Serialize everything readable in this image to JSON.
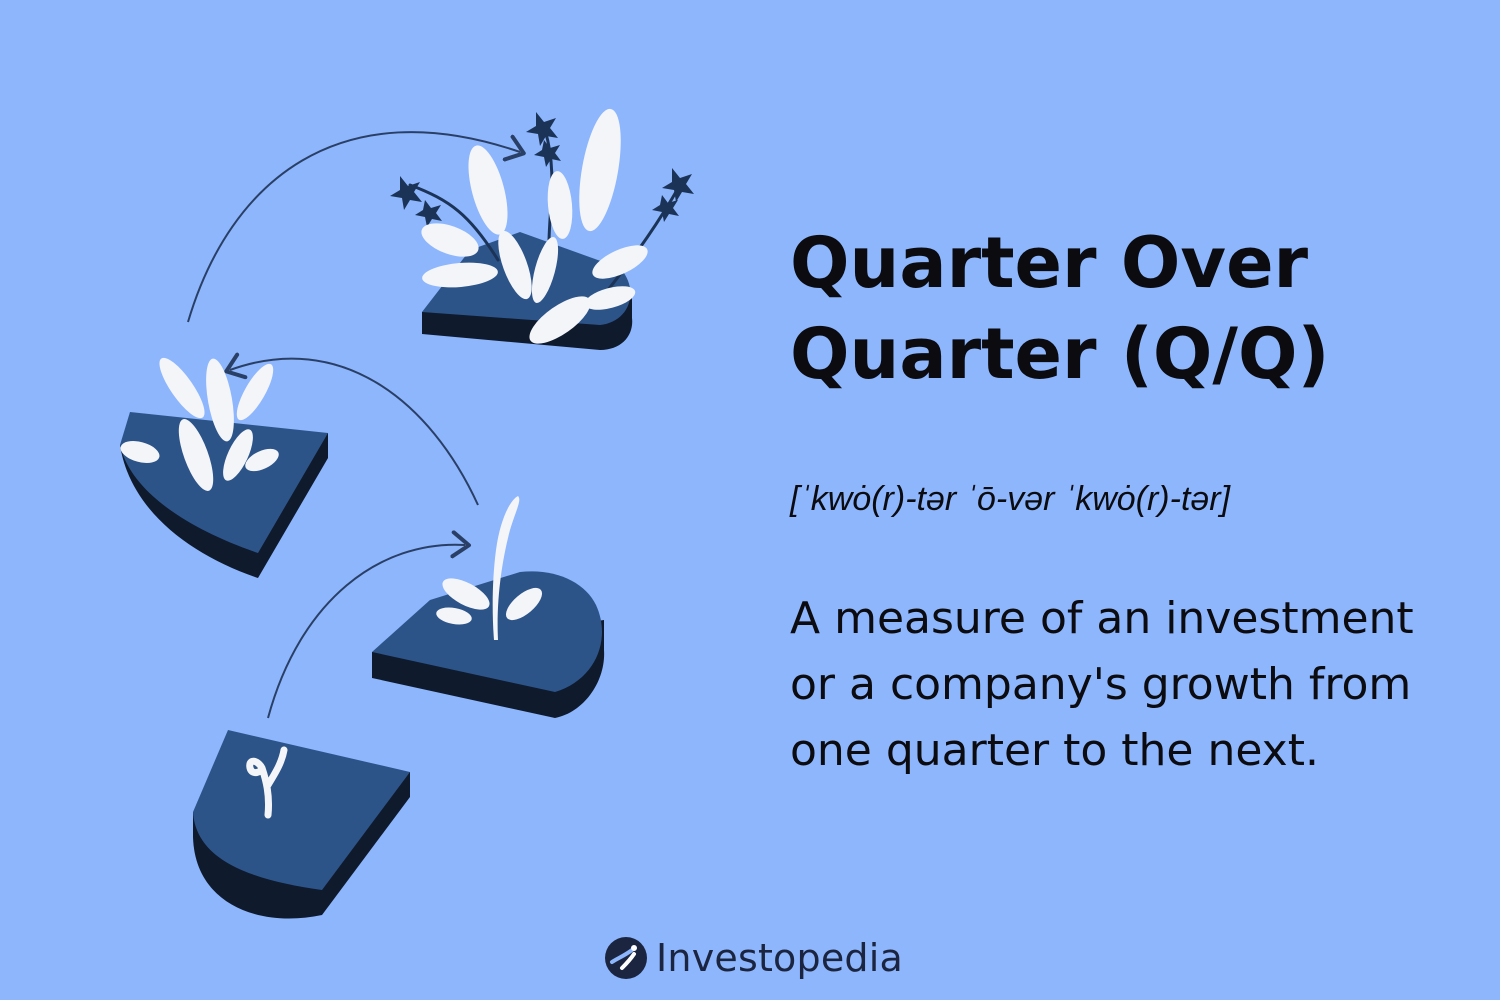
{
  "colors": {
    "background": "#8db6fd",
    "stone_top": "#2c5489",
    "stone_side": "#0f1a2c",
    "leaf": "#f3f5f9",
    "arrow": "#2a3f66",
    "flower": "#1b3357",
    "text": "#0b0b10",
    "logo": "#1c2540"
  },
  "headline": {
    "line1": "Quarter Over",
    "line2": "Quarter (Q/Q)"
  },
  "pronunciation": "[ˈkwȯ(r)-tər ˈō-vər ˈkwȯ(r)-tər]",
  "definition": {
    "line1": "A measure of an investment",
    "line2": "or a company's growth from",
    "line3": "one quarter to the next."
  },
  "illustration": {
    "stones": 4,
    "icons": [
      "curved-arrow-icon",
      "sprout-icon",
      "flower-icon"
    ]
  },
  "brand": {
    "name": "Investopedia",
    "icon": "investopedia-logo-icon"
  }
}
